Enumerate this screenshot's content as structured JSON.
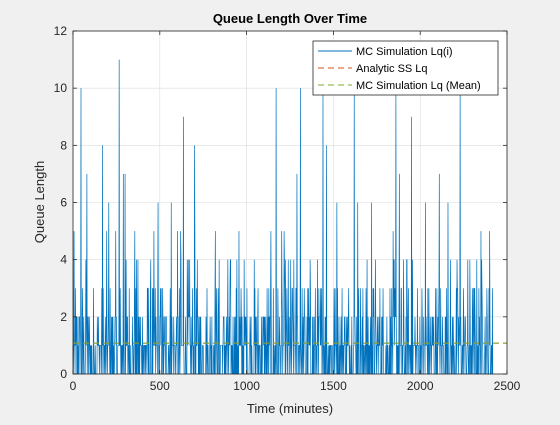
{
  "chart_data": {
    "type": "line",
    "title": "Queue Length Over Time",
    "xlabel": "Time (minutes)",
    "ylabel": "Queue Length",
    "xlim": [
      0,
      2500
    ],
    "ylim": [
      0,
      12
    ],
    "x_ticks": [
      0,
      500,
      1000,
      1500,
      2000,
      2500
    ],
    "y_ticks": [
      0,
      2,
      4,
      6,
      8,
      10,
      12
    ],
    "grid": true,
    "legend_position": "top-right",
    "series": [
      {
        "name": "MC Simulation Lq(i)",
        "color": "#0072bd",
        "style": "solid",
        "x_range": [
          0,
          2420
        ],
        "peaks": [
          {
            "x": 45,
            "y": 10
          },
          {
            "x": 80,
            "y": 7
          },
          {
            "x": 170,
            "y": 8
          },
          {
            "x": 205,
            "y": 6
          },
          {
            "x": 265,
            "y": 11
          },
          {
            "x": 290,
            "y": 7
          },
          {
            "x": 300,
            "y": 7
          },
          {
            "x": 355,
            "y": 5
          },
          {
            "x": 490,
            "y": 6
          },
          {
            "x": 565,
            "y": 6
          },
          {
            "x": 620,
            "y": 5
          },
          {
            "x": 635,
            "y": 9
          },
          {
            "x": 700,
            "y": 8
          },
          {
            "x": 820,
            "y": 5
          },
          {
            "x": 955,
            "y": 5
          },
          {
            "x": 1170,
            "y": 10
          },
          {
            "x": 1290,
            "y": 7
          },
          {
            "x": 1310,
            "y": 10
          },
          {
            "x": 1440,
            "y": 10
          },
          {
            "x": 1460,
            "y": 8
          },
          {
            "x": 1520,
            "y": 6
          },
          {
            "x": 1620,
            "y": 10
          },
          {
            "x": 1640,
            "y": 6
          },
          {
            "x": 1720,
            "y": 6
          },
          {
            "x": 1860,
            "y": 10
          },
          {
            "x": 1880,
            "y": 7
          },
          {
            "x": 1950,
            "y": 9
          },
          {
            "x": 2030,
            "y": 6
          },
          {
            "x": 2110,
            "y": 7
          },
          {
            "x": 2160,
            "y": 6
          },
          {
            "x": 2230,
            "y": 10
          },
          {
            "x": 2350,
            "y": 5
          },
          {
            "x": 2400,
            "y": 5
          }
        ]
      },
      {
        "name": "Analytic SS Lq",
        "color": "#d95319",
        "style": "dashed",
        "value": 1.08
      },
      {
        "name": "MC Simulation Lq (Mean)",
        "color": "#77ac30",
        "style": "dashed",
        "value": 1.08
      }
    ]
  }
}
